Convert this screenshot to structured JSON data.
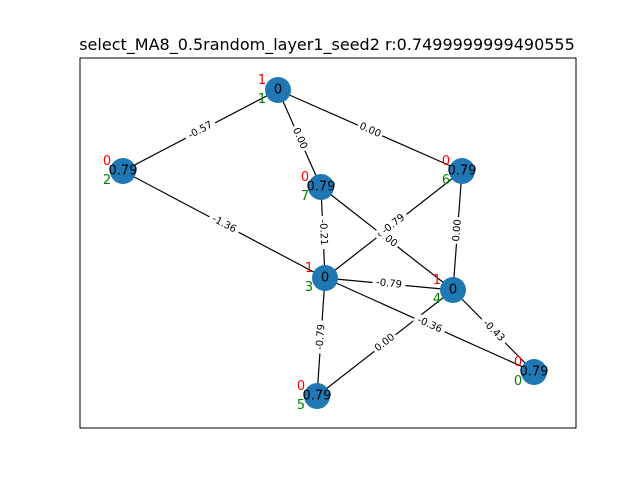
{
  "title": "select_MA8_0.5random_layer1_seed2  r:0.7499999999490555",
  "nodes": [
    {
      "id": "1",
      "value": "0",
      "red_label": "1",
      "green_label": "1"
    },
    {
      "id": "2",
      "value": "0.79",
      "red_label": "0",
      "green_label": "2"
    },
    {
      "id": "7",
      "value": "0.79",
      "red_label": "0",
      "green_label": "7"
    },
    {
      "id": "6",
      "value": "0.79",
      "red_label": "0",
      "green_label": "6"
    },
    {
      "id": "3",
      "value": "0",
      "red_label": "1",
      "green_label": "3"
    },
    {
      "id": "4",
      "value": "0",
      "red_label": "1",
      "green_label": "4"
    },
    {
      "id": "5",
      "value": "0.79",
      "red_label": "0",
      "green_label": "5"
    },
    {
      "id": "0",
      "value": "0.79",
      "red_label": "0",
      "green_label": "0"
    }
  ],
  "edges": [
    {
      "source": "1",
      "target": "2",
      "label": "-0.57"
    },
    {
      "source": "1",
      "target": "7",
      "label": "0.00"
    },
    {
      "source": "1",
      "target": "6",
      "label": "0.00"
    },
    {
      "source": "2",
      "target": "3",
      "label": "-1.36"
    },
    {
      "source": "7",
      "target": "3",
      "label": "-0.21"
    },
    {
      "source": "7",
      "target": "4",
      "label": "0.00"
    },
    {
      "source": "6",
      "target": "3",
      "label": "-0.79"
    },
    {
      "source": "6",
      "target": "4",
      "label": "0.00"
    },
    {
      "source": "3",
      "target": "4",
      "label": "-0.79"
    },
    {
      "source": "3",
      "target": "5",
      "label": "-0.79"
    },
    {
      "source": "3",
      "target": "0",
      "label": "-0.36"
    },
    {
      "source": "4",
      "target": "5",
      "label": "0.00"
    },
    {
      "source": "4",
      "target": "0",
      "label": "-0.43"
    }
  ],
  "colors": {
    "node": "#1f77b4",
    "red_label": "#ff0000",
    "green_label": "#008000"
  }
}
